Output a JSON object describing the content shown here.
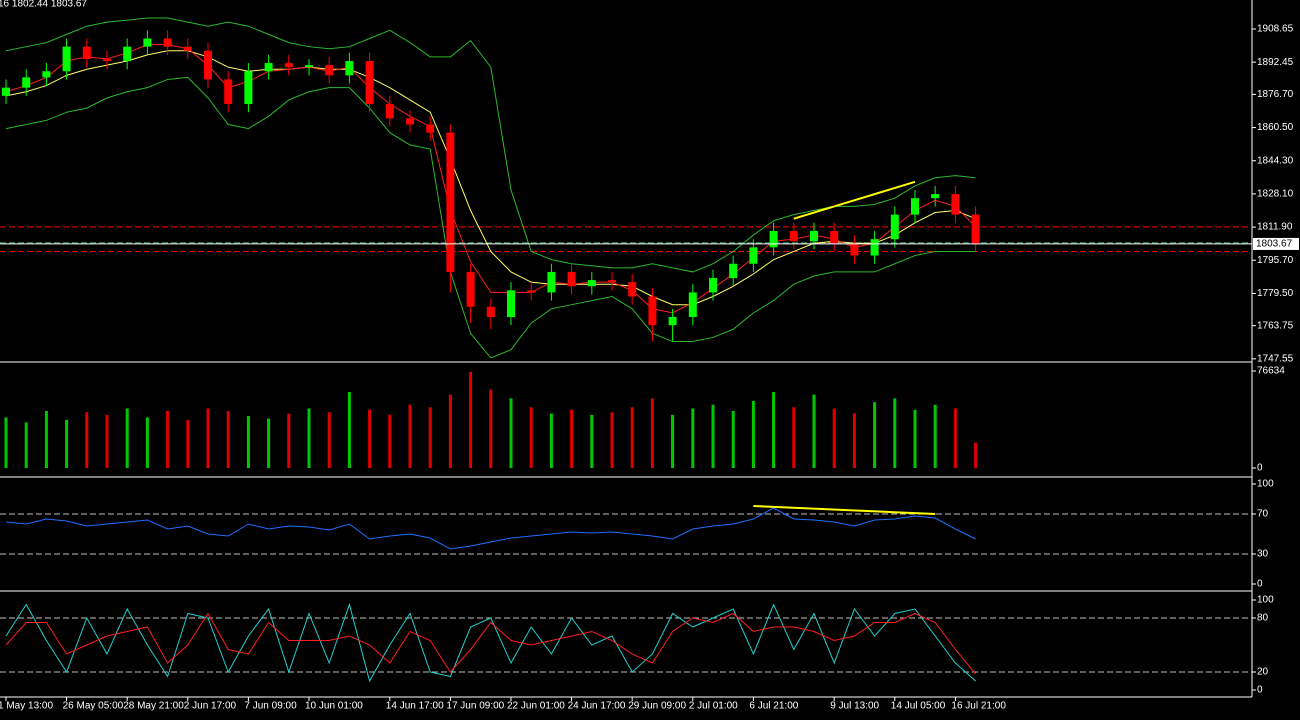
{
  "chart_data": [
    {
      "type": "candlestick",
      "title": "16 1802.44 1803.67",
      "open": [
        1876,
        1880,
        1885,
        1888,
        1900,
        1894,
        1893,
        1900,
        1904,
        1900,
        1898,
        1884,
        1872,
        1888,
        1892,
        1890,
        1891,
        1886,
        1893,
        1872,
        1865,
        1862,
        1858,
        1790,
        1773,
        1768,
        1781,
        1780,
        1790,
        1783,
        1786,
        1785,
        1778,
        1764,
        1768,
        1780,
        1787,
        1794,
        1802,
        1810,
        1805,
        1810,
        1804,
        1798,
        1806,
        1818,
        1826,
        1828,
        1818
      ],
      "high": [
        1884,
        1889,
        1892,
        1904,
        1904,
        1898,
        1904,
        1908,
        1908,
        1904,
        1902,
        1888,
        1892,
        1896,
        1896,
        1894,
        1895,
        1897,
        1897,
        1876,
        1869,
        1866,
        1862,
        1794,
        1777,
        1785,
        1785,
        1794,
        1794,
        1790,
        1790,
        1789,
        1782,
        1772,
        1784,
        1791,
        1798,
        1806,
        1814,
        1814,
        1814,
        1814,
        1808,
        1810,
        1822,
        1830,
        1832,
        1832,
        1822
      ],
      "low": [
        1872,
        1876,
        1881,
        1884,
        1890,
        1889,
        1889,
        1896,
        1896,
        1894,
        1880,
        1868,
        1868,
        1884,
        1886,
        1886,
        1882,
        1882,
        1868,
        1861,
        1858,
        1854,
        1780,
        1765,
        1762,
        1764,
        1776,
        1776,
        1779,
        1779,
        1781,
        1774,
        1756,
        1756,
        1764,
        1776,
        1783,
        1790,
        1798,
        1801,
        1801,
        1800,
        1794,
        1794,
        1802,
        1814,
        1822,
        1814,
        1800
      ],
      "close": [
        1880,
        1885,
        1888,
        1900,
        1894,
        1893,
        1900,
        1904,
        1900,
        1898,
        1884,
        1872,
        1888,
        1892,
        1890,
        1891,
        1886,
        1893,
        1872,
        1865,
        1862,
        1858,
        1790,
        1773,
        1768,
        1781,
        1780,
        1790,
        1783,
        1786,
        1785,
        1778,
        1764,
        1768,
        1780,
        1787,
        1794,
        1802,
        1810,
        1805,
        1810,
        1804,
        1798,
        1806,
        1818,
        1826,
        1828,
        1818,
        1803.67
      ],
      "up_color": "#00ff00",
      "down_color": "#ff0000",
      "overlays": [
        {
          "color": "#2eb82e",
          "values": [
            1898,
            1900,
            1902,
            1906,
            1910,
            1912,
            1913,
            1914,
            1914,
            1912,
            1910,
            1912,
            1910,
            1906,
            1902,
            1900,
            1899,
            1900,
            1904,
            1908,
            1902,
            1895,
            1895,
            1903,
            1890,
            1830,
            1800,
            1796,
            1794,
            1793,
            1792,
            1792,
            1794,
            1792,
            1790,
            1794,
            1800,
            1808,
            1815,
            1818,
            1820,
            1822,
            1822,
            1823,
            1826,
            1832,
            1836,
            1837,
            1836
          ]
        },
        {
          "color": "#2eb82e",
          "values": [
            1860,
            1862,
            1864,
            1868,
            1870,
            1875,
            1878,
            1880,
            1884,
            1885,
            1875,
            1862,
            1860,
            1866,
            1874,
            1878,
            1880,
            1880,
            1870,
            1858,
            1852,
            1850,
            1790,
            1760,
            1748,
            1752,
            1765,
            1772,
            1774,
            1776,
            1778,
            1772,
            1760,
            1756,
            1756,
            1758,
            1762,
            1770,
            1776,
            1784,
            1788,
            1790,
            1790,
            1790,
            1794,
            1798,
            1800,
            1800,
            1800
          ]
        },
        {
          "color": "#ffff66",
          "values": [
            1876,
            1878,
            1881,
            1886,
            1889,
            1891,
            1893,
            1896,
            1898,
            1898,
            1895,
            1890,
            1888,
            1889,
            1889,
            1890,
            1889,
            1889,
            1885,
            1880,
            1874,
            1868,
            1845,
            1820,
            1800,
            1790,
            1785,
            1784,
            1784,
            1784,
            1784,
            1783,
            1778,
            1774,
            1774,
            1778,
            1783,
            1789,
            1796,
            1800,
            1804,
            1805,
            1804,
            1804,
            1808,
            1814,
            1819,
            1820,
            1816
          ]
        },
        {
          "color": "#ff2020",
          "values": [
            1878,
            1881,
            1885,
            1893,
            1895,
            1894,
            1897,
            1901,
            1901,
            1899,
            1891,
            1880,
            1883,
            1888,
            1889,
            1890,
            1888,
            1890,
            1880,
            1872,
            1866,
            1861,
            1820,
            1795,
            1780,
            1780,
            1780,
            1785,
            1784,
            1785,
            1785,
            1781,
            1772,
            1770,
            1775,
            1782,
            1789,
            1797,
            1805,
            1806,
            1808,
            1806,
            1802,
            1804,
            1812,
            1820,
            1825,
            1822,
            1812
          ]
        }
      ],
      "trendline": {
        "x": [
          39,
          45
        ],
        "values": [
          1816,
          1834
        ],
        "color": "#ffff00"
      },
      "levels": [
        {
          "value": 1812,
          "color": "#ff0000"
        },
        {
          "value": 1800,
          "color": "#ff0000"
        },
        {
          "value": 1804.2,
          "color": "#3cb371"
        }
      ],
      "current_price": 1803.67,
      "ylim": [
        1746.5,
        1922.8
      ],
      "yticks": [
        1908.65,
        1892.45,
        {
          "value": 1876.7,
          "label": "1876.70"
        },
        {
          "value": 1860.5,
          "label": "1860.50"
        },
        {
          "value": 1844.3,
          "label": "1844.30"
        },
        {
          "value": 1828.1,
          "label": "1828.10"
        },
        {
          "value": 1811.9,
          "label": "1811.90"
        },
        {
          "value": 1795.7,
          "label": "1795.70"
        },
        {
          "value": 1779.5,
          "label": "1779.50"
        },
        1763.75,
        1747.55
      ]
    },
    {
      "type": "bar",
      "values": [
        40000,
        36000,
        45000,
        38000,
        44000,
        42000,
        47000,
        40000,
        45000,
        38000,
        47000,
        45000,
        41000,
        39000,
        43000,
        47000,
        44000,
        60000,
        46000,
        42000,
        50000,
        48000,
        58000,
        76000,
        62000,
        55000,
        48000,
        43000,
        46000,
        42000,
        44000,
        48000,
        55000,
        42000,
        47000,
        50000,
        45000,
        53000,
        60000,
        48000,
        58000,
        47000,
        43000,
        52000,
        55000,
        46000,
        50000,
        47000,
        20000
      ],
      "up_color": "#00c800",
      "down_color": "#e00000",
      "ylim": [
        0,
        76634
      ],
      "yticks": [
        0,
        76634
      ]
    },
    {
      "type": "line",
      "series": [
        {
          "color": "#1e6fff",
          "values": [
            62,
            60,
            65,
            63,
            58,
            60,
            62,
            64,
            55,
            58,
            50,
            48,
            60,
            55,
            58,
            57,
            54,
            60,
            45,
            48,
            50,
            46,
            35,
            38,
            42,
            46,
            48,
            50,
            52,
            51,
            52,
            50,
            48,
            45,
            55,
            58,
            60,
            65,
            76,
            65,
            64,
            62,
            58,
            64,
            65,
            68,
            66,
            55,
            45
          ]
        }
      ],
      "trendline": {
        "x": [
          37,
          46
        ],
        "values": [
          78,
          70
        ],
        "color": "#ffff00"
      },
      "levels": [
        {
          "value": 30,
          "color": "#c0c0c0"
        },
        {
          "value": 70,
          "color": "#c0c0c0"
        }
      ],
      "ylim": [
        0,
        100
      ],
      "yticks": [
        0,
        30,
        70,
        100
      ]
    },
    {
      "type": "line",
      "series": [
        {
          "color": "#20d0d0",
          "values": [
            60,
            95,
            55,
            20,
            80,
            40,
            90,
            50,
            15,
            85,
            80,
            20,
            60,
            90,
            20,
            85,
            30,
            95,
            10,
            50,
            85,
            20,
            15,
            70,
            80,
            30,
            70,
            40,
            80,
            50,
            60,
            20,
            40,
            85,
            70,
            80,
            90,
            40,
            95,
            45,
            85,
            30,
            90,
            60,
            85,
            90,
            60,
            30,
            10
          ]
        },
        {
          "color": "#ff2020",
          "values": [
            50,
            75,
            75,
            40,
            50,
            60,
            65,
            70,
            30,
            50,
            85,
            45,
            40,
            75,
            55,
            55,
            55,
            60,
            50,
            30,
            65,
            55,
            20,
            45,
            75,
            55,
            50,
            55,
            60,
            65,
            55,
            40,
            30,
            65,
            80,
            75,
            85,
            65,
            70,
            70,
            65,
            55,
            60,
            75,
            75,
            85,
            75,
            45,
            18
          ]
        }
      ],
      "levels": [
        {
          "value": 20,
          "color": "#c0c0c0"
        },
        {
          "value": 80,
          "color": "#c0c0c0"
        }
      ],
      "ylim": [
        0,
        100
      ],
      "yticks": [
        0,
        20,
        80,
        100
      ],
      "categories": [
        "1 May 13:00",
        null,
        null,
        "26 May 05:00",
        null,
        null,
        "28 May 21:00",
        null,
        null,
        "2 Jun 17:00",
        null,
        null,
        "7 Jun 09:00",
        null,
        null,
        "10 Jun 01:00",
        null,
        null,
        null,
        "14 Jun 17:00",
        null,
        null,
        "17 Jun 09:00",
        null,
        null,
        "22 Jun 01:00",
        null,
        null,
        "24 Jun 17:00",
        null,
        null,
        "29 Jun 09:00",
        null,
        null,
        "2 Jul 01:00",
        null,
        null,
        "6 Jul 21:00",
        null,
        null,
        null,
        "9 Jul 13:00",
        null,
        null,
        "14 Jul 05:00",
        null,
        null,
        "16 Jul 21:00",
        null
      ]
    }
  ]
}
